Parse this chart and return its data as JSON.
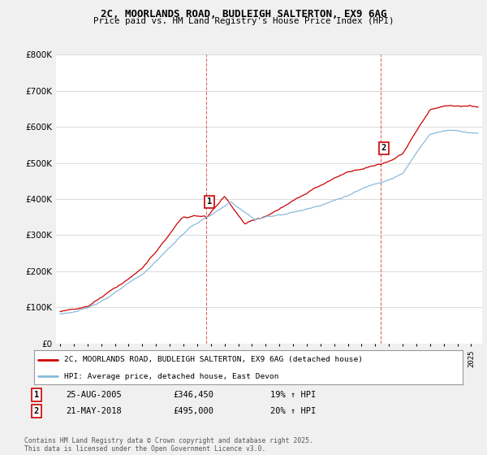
{
  "title_line1": "2C, MOORLANDS ROAD, BUDLEIGH SALTERTON, EX9 6AG",
  "title_line2": "Price paid vs. HM Land Registry's House Price Index (HPI)",
  "legend_label1": "2C, MOORLANDS ROAD, BUDLEIGH SALTERTON, EX9 6AG (detached house)",
  "legend_label2": "HPI: Average price, detached house, East Devon",
  "annotation1_num": "1",
  "annotation1_date": "25-AUG-2005",
  "annotation1_price": "£346,450",
  "annotation1_hpi": "19% ↑ HPI",
  "annotation1_year": 2005.65,
  "annotation2_num": "2",
  "annotation2_date": "21-MAY-2018",
  "annotation2_price": "£495,000",
  "annotation2_hpi": "20% ↑ HPI",
  "annotation2_year": 2018.38,
  "footer": "Contains HM Land Registry data © Crown copyright and database right 2025.\nThis data is licensed under the Open Government Licence v3.0.",
  "line1_color": "#cc0000",
  "line2_color": "#88bbdd",
  "background_color": "#f0f0f0",
  "plot_bg_color": "#ffffff",
  "ylim_min": 0,
  "ylim_max": 800000,
  "xlabel_start": 1995,
  "xlabel_end": 2025
}
